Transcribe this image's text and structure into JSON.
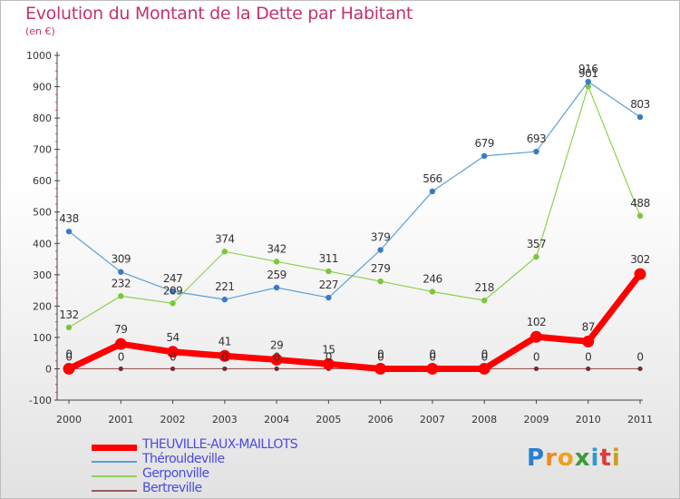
{
  "title": "Evolution du Montant de la Dette par Habitant",
  "unit": "(en €)",
  "brand": {
    "letters": [
      "P",
      "r",
      "o",
      "x",
      "i",
      "t",
      "i"
    ],
    "colors": [
      "#2a7fd0",
      "#f08a1c",
      "#f0a020",
      "#3a9b3a",
      "#2a9bd0",
      "#e03a3a",
      "#c8a020"
    ]
  },
  "chart_data": {
    "type": "line",
    "x": [
      "2000",
      "2001",
      "2002",
      "2003",
      "2004",
      "2005",
      "2006",
      "2007",
      "2008",
      "2009",
      "2010",
      "2011"
    ],
    "ylim": [
      -100,
      1000
    ],
    "yticks": [
      "-100",
      "0",
      "100",
      "200",
      "300",
      "400",
      "500",
      "600",
      "700",
      "800",
      "900",
      "1000"
    ],
    "grid": false,
    "legend_position": "bottom-left",
    "series": [
      {
        "name": "THEUVILLE-AUX-MAILLOTS",
        "color": "#ff0000",
        "values": [
          0,
          79,
          54,
          41,
          29,
          15,
          0,
          0,
          0,
          102,
          87,
          302
        ],
        "labels": [
          "0",
          "79",
          "54",
          "41",
          "29",
          "15",
          "0",
          "0",
          "0",
          "102",
          "87",
          "302"
        ]
      },
      {
        "name": "Thérouldeville",
        "color": "#5c9fd6",
        "values": [
          438,
          309,
          247,
          221,
          259,
          227,
          379,
          566,
          679,
          693,
          916,
          803
        ],
        "labels": [
          "438",
          "309",
          "247",
          "221",
          "259",
          "227",
          "379",
          "566",
          "679",
          "693",
          "916",
          "803"
        ]
      },
      {
        "name": "Gerponville",
        "color": "#8fd052",
        "values": [
          132,
          232,
          209,
          374,
          342,
          311,
          279,
          246,
          218,
          357,
          901,
          488
        ],
        "labels": [
          "132",
          "232",
          "209",
          "374",
          "342",
          "311",
          "279",
          "246",
          "218",
          "357",
          "901",
          "488"
        ]
      },
      {
        "name": "Bertreville",
        "color": "#8b3a3a",
        "values": [
          0,
          0,
          0,
          0,
          0,
          0,
          0,
          0,
          0,
          0,
          0,
          0
        ],
        "labels": [
          "0",
          "0",
          "0",
          "0",
          "0",
          "0",
          "0",
          "0",
          "0",
          "0",
          "0",
          "0"
        ]
      }
    ]
  }
}
